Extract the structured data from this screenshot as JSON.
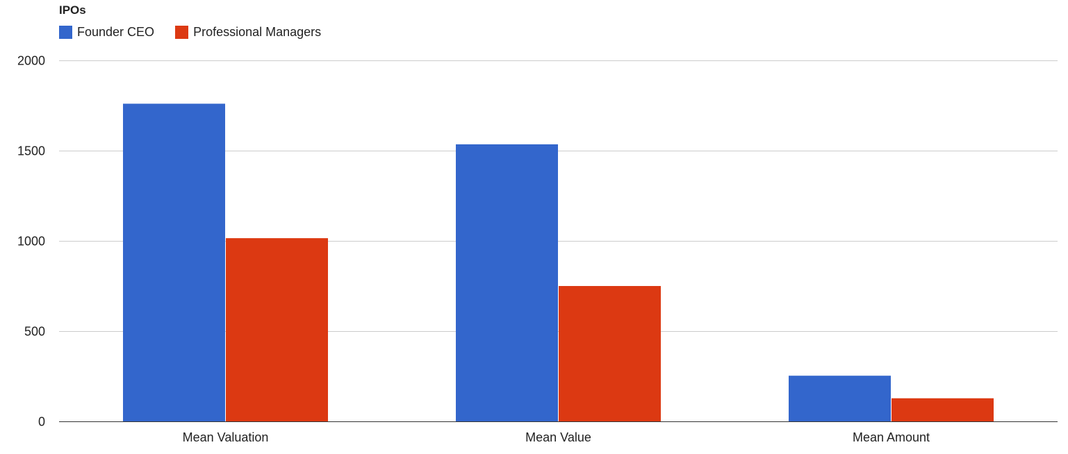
{
  "chart_data": {
    "type": "bar",
    "title": "IPOs",
    "categories": [
      "Mean Valuation",
      "Mean Value",
      "Mean Amount"
    ],
    "series": [
      {
        "name": "Founder CEO",
        "values": [
          1760,
          1535,
          253
        ],
        "color": "#3366cc"
      },
      {
        "name": "Professional Managers",
        "values": [
          1015,
          750,
          128
        ],
        "color": "#dc3912"
      }
    ],
    "ylim": [
      0,
      2000
    ],
    "yticks": [
      0,
      500,
      1000,
      1500,
      2000
    ],
    "ytick_labels": [
      "0",
      "500",
      "1000",
      "1500",
      "2000"
    ],
    "xlabel": "",
    "ylabel": "",
    "grid": true,
    "legend_position": "top-left"
  }
}
